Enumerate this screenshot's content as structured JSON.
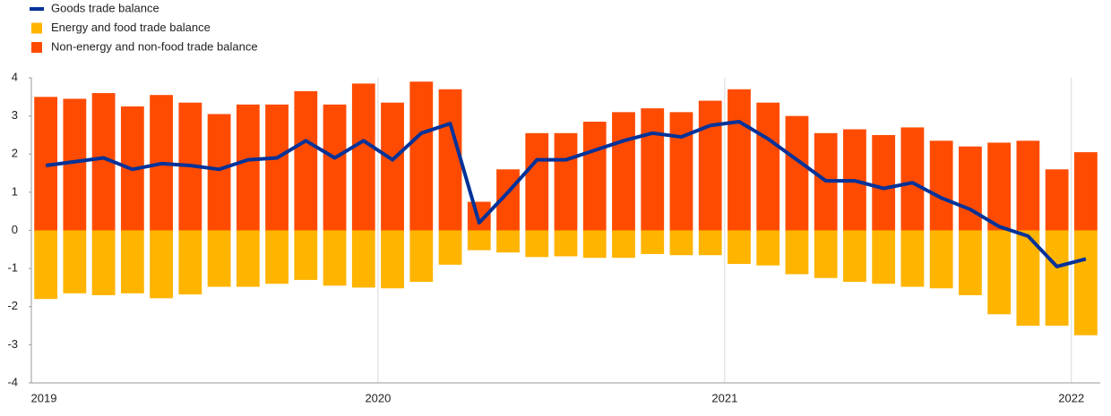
{
  "chart_data": {
    "type": "bar",
    "categories": [
      "2019",
      null,
      null,
      null,
      null,
      null,
      null,
      null,
      null,
      null,
      null,
      null,
      "2020",
      null,
      null,
      null,
      null,
      null,
      null,
      null,
      null,
      null,
      null,
      null,
      "2021",
      null,
      null,
      null,
      null,
      null,
      null,
      null,
      null,
      null,
      null,
      null,
      "2022"
    ],
    "series": [
      {
        "name": "Goods trade balance",
        "type": "line",
        "color": "#003299",
        "values": [
          1.7,
          1.8,
          1.9,
          1.6,
          1.75,
          1.7,
          1.6,
          1.85,
          1.9,
          2.35,
          1.9,
          2.35,
          1.85,
          2.55,
          2.8,
          0.2,
          1.0,
          1.85,
          1.85,
          2.1,
          2.35,
          2.55,
          2.45,
          2.75,
          2.85,
          2.4,
          1.85,
          1.3,
          1.3,
          1.1,
          1.25,
          0.85,
          0.55,
          0.1,
          -0.15,
          -0.95,
          -0.75
        ]
      },
      {
        "name": "Energy and food trade balance",
        "type": "bar",
        "color": "#ffb400",
        "values": [
          -1.8,
          -1.65,
          -1.7,
          -1.65,
          -1.78,
          -1.68,
          -1.48,
          -1.48,
          -1.4,
          -1.3,
          -1.45,
          -1.5,
          -1.52,
          -1.35,
          -0.9,
          -0.52,
          -0.58,
          -0.7,
          -0.68,
          -0.72,
          -0.72,
          -0.62,
          -0.65,
          -0.65,
          -0.88,
          -0.92,
          -1.15,
          -1.25,
          -1.35,
          -1.4,
          -1.48,
          -1.52,
          -1.7,
          -2.2,
          -2.5,
          -2.5,
          -2.75
        ]
      },
      {
        "name": "Non-energy and non-food trade balance",
        "type": "bar",
        "color": "#ff4b00",
        "values": [
          3.5,
          3.45,
          3.6,
          3.25,
          3.55,
          3.35,
          3.05,
          3.3,
          3.3,
          3.65,
          3.3,
          3.85,
          3.35,
          3.9,
          3.7,
          0.75,
          1.6,
          2.55,
          2.55,
          2.85,
          3.1,
          3.2,
          3.1,
          3.4,
          3.7,
          3.35,
          3.0,
          2.55,
          2.65,
          2.5,
          2.7,
          2.35,
          2.2,
          2.3,
          2.35,
          1.6,
          2.05
        ]
      }
    ],
    "ylim": [
      -4,
      4
    ],
    "yticks": [
      -4,
      -3,
      -2,
      -1,
      0,
      1,
      2,
      3,
      4
    ],
    "grid": true,
    "legend": "top-left"
  }
}
